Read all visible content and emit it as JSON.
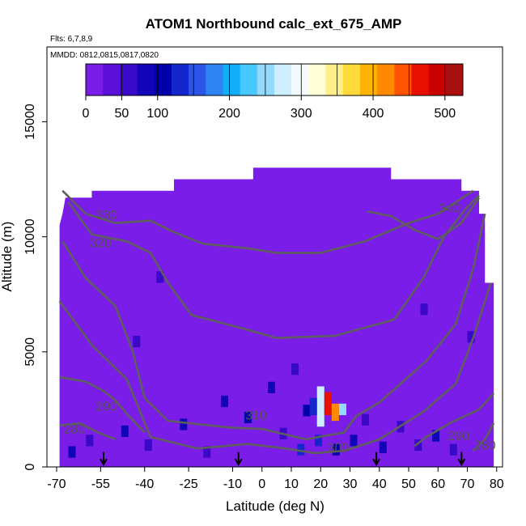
{
  "chart_data": {
    "type": "heatmap",
    "title": "ATOM1 Northbound calc_ext_675_AMP",
    "subtitle_flights": "Flts: 6,7,8,9",
    "subtitle_dates": "MMDD: 0812,0815,0817,0820",
    "xlabel": "Latitude (deg N)",
    "ylabel": "Altitude (m)",
    "xlim": [
      -70,
      80
    ],
    "ylim": [
      0,
      17500
    ],
    "x_ticks": [
      -70,
      -55,
      -40,
      -25,
      -10,
      0,
      10,
      20,
      30,
      40,
      50,
      60,
      70,
      80
    ],
    "y_ticks": [
      0,
      5000,
      10000,
      15000
    ],
    "colorbar": {
      "range": [
        0,
        525
      ],
      "ticks": [
        0,
        50,
        100,
        200,
        300,
        400,
        500
      ],
      "colors": [
        "#7b1de8",
        "#5a10d9",
        "#3a08c8",
        "#1205b9",
        "#0000a8",
        "#1427cc",
        "#2a55e6",
        "#2f82f2",
        "#14aef8",
        "#47c8ff",
        "#94daff",
        "#cfeeff",
        "#f4fbff",
        "#fffdd6",
        "#ffef88",
        "#ffd93a",
        "#ffb300",
        "#ff8a00",
        "#ff5500",
        "#e81000",
        "#c80000",
        "#a81010"
      ]
    },
    "background_value": 0,
    "cells": [
      {
        "lat": 20,
        "alt_range": [
          1750,
          3500
        ],
        "value": 280
      },
      {
        "lat": 22.5,
        "alt_range": [
          2250,
          3250
        ],
        "value": 470
      },
      {
        "lat": 25,
        "alt_range": [
          2000,
          2750
        ],
        "value": 420
      },
      {
        "lat": 27.5,
        "alt_range": [
          2250,
          2750
        ],
        "value": 240
      },
      {
        "lat": 17.5,
        "alt_range": [
          2250,
          3000
        ],
        "value": 120
      }
    ],
    "contour_labels": [
      "330",
      "320",
      "310",
      "300",
      "290",
      "280",
      "340",
      "290",
      "280"
    ],
    "flight_markers_lat": [
      -54,
      -8,
      39,
      68
    ]
  }
}
